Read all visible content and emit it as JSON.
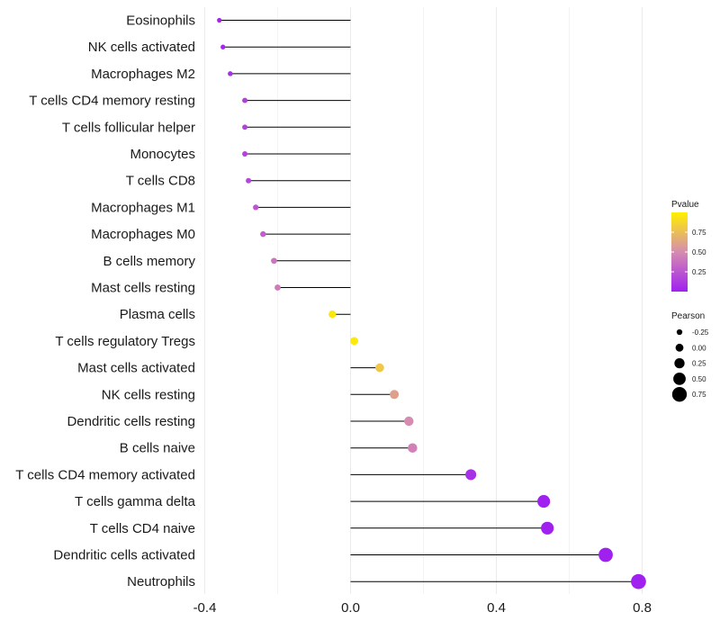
{
  "chart_data": {
    "type": "lollipop",
    "xlabel": "",
    "ylabel": "",
    "xlim": [
      -0.41,
      0.83
    ],
    "xticks": [
      -0.4,
      0.0,
      0.4,
      0.8
    ],
    "xtick_labels": [
      "-0.4",
      "0.0",
      "0.4",
      "0.8"
    ],
    "categories": [
      "Eosinophils",
      "NK cells activated",
      "Macrophages M2",
      "T cells CD4 memory resting",
      "T cells follicular helper",
      "Monocytes",
      "T cells CD8",
      "Macrophages M1",
      "Macrophages M0",
      "B cells memory",
      "Mast cells resting",
      "Plasma cells",
      "T cells regulatory  Tregs ",
      "Mast cells activated",
      "NK cells resting",
      "Dendritic cells resting",
      "B cells naive",
      "T cells CD4 memory activated",
      "T cells gamma delta",
      "T cells CD4 naive",
      "Dendritic cells activated",
      "Neutrophils"
    ],
    "pearson": [
      -0.36,
      -0.35,
      -0.33,
      -0.29,
      -0.29,
      -0.29,
      -0.28,
      -0.26,
      -0.24,
      -0.21,
      -0.2,
      -0.05,
      0.01,
      0.08,
      0.12,
      0.16,
      0.17,
      0.33,
      0.53,
      0.54,
      0.7,
      0.79
    ],
    "pvalue": [
      0.02,
      0.03,
      0.07,
      0.15,
      0.16,
      0.16,
      0.18,
      0.25,
      0.3,
      0.4,
      0.42,
      0.95,
      0.97,
      0.8,
      0.6,
      0.5,
      0.45,
      0.08,
      0.0,
      0.0,
      0.0,
      0.0
    ],
    "legend": {
      "color_title": "Pvalue",
      "color_ticks": [
        0.25,
        0.5,
        0.75
      ],
      "color_tick_labels": [
        "0.25",
        "0.50",
        "0.75"
      ],
      "color_low": "#A020F0",
      "color_mid": "#D58CB0",
      "color_high": "#FFF000",
      "size_title": "Pearson",
      "size_values": [
        -0.25,
        0.0,
        0.25,
        0.5,
        0.75
      ],
      "size_labels": [
        "-0.25",
        "0.00",
        "0.25",
        "0.50",
        "0.75"
      ]
    }
  }
}
